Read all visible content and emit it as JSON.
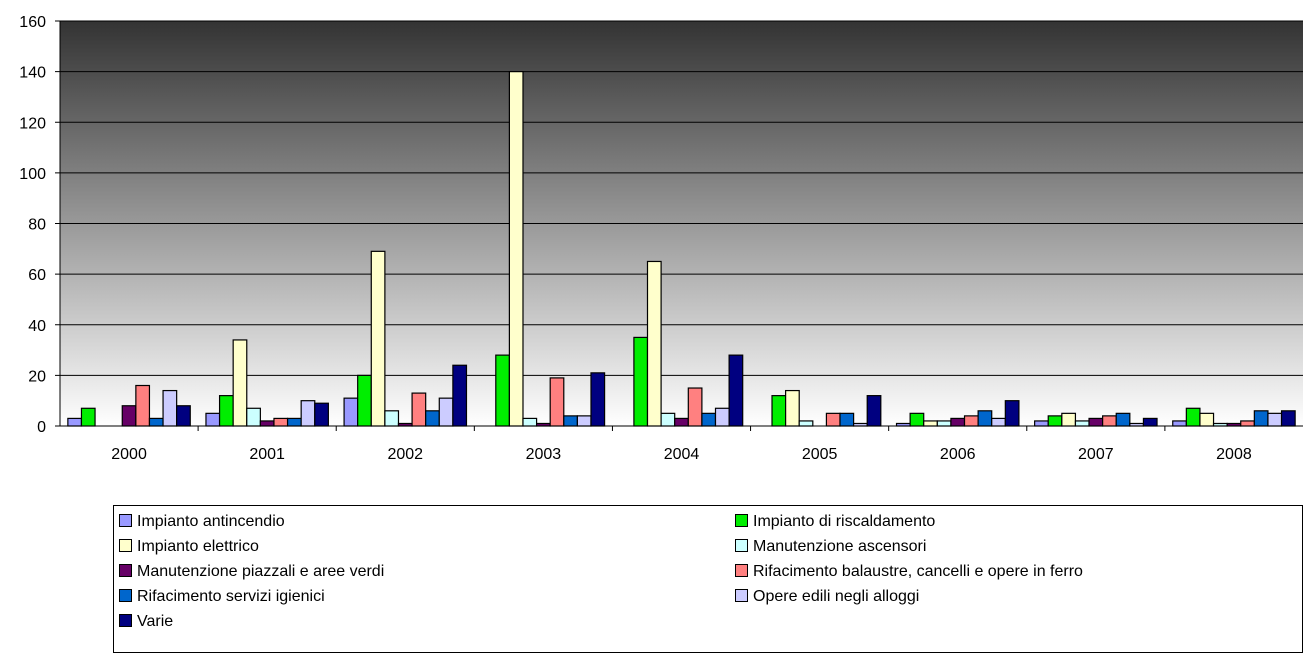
{
  "chart_data": {
    "type": "bar",
    "title": "",
    "xlabel": "",
    "ylabel": "",
    "categories": [
      "2000",
      "2001",
      "2002",
      "2003",
      "2004",
      "2005",
      "2006",
      "2007",
      "2008"
    ],
    "ylim": [
      0,
      160
    ],
    "yticks": [
      "0",
      "20",
      "40",
      "60",
      "80",
      "100",
      "120",
      "140",
      "160"
    ],
    "grid": true,
    "legend_position": "bottom",
    "series": [
      {
        "name": "Impianto antincendio",
        "color": "#9999ff",
        "values": [
          3,
          5,
          11,
          0,
          0,
          0,
          1,
          2,
          2
        ]
      },
      {
        "name": "Impianto di riscaldamento",
        "color": "#00ee00",
        "values": [
          7,
          12,
          20,
          28,
          35,
          12,
          5,
          4,
          7
        ]
      },
      {
        "name": "Impianto elettrico",
        "color": "#ffffcc",
        "values": [
          0,
          34,
          69,
          140,
          65,
          14,
          2,
          5,
          5
        ]
      },
      {
        "name": "Manutenzione ascensori",
        "color": "#ccffff",
        "values": [
          0,
          7,
          6,
          3,
          5,
          2,
          2,
          2,
          1
        ]
      },
      {
        "name": "Manutenzione piazzali e aree verdi",
        "color": "#660066",
        "values": [
          8,
          2,
          1,
          1,
          3,
          0,
          3,
          3,
          1
        ]
      },
      {
        "name": "Rifacimento balaustre, cancelli e opere in ferro",
        "color": "#ff8080",
        "values": [
          16,
          3,
          13,
          19,
          15,
          5,
          4,
          4,
          2
        ]
      },
      {
        "name": "Rifacimento servizi igienici",
        "color": "#0066cc",
        "values": [
          3,
          3,
          6,
          4,
          5,
          5,
          6,
          5,
          6
        ]
      },
      {
        "name": "Opere edili negli alloggi",
        "color": "#ccccff",
        "values": [
          14,
          10,
          11,
          4,
          7,
          1,
          3,
          1,
          5
        ]
      },
      {
        "name": "Varie",
        "color": "#000080",
        "values": [
          8,
          9,
          24,
          21,
          28,
          12,
          10,
          3,
          6
        ]
      }
    ]
  }
}
